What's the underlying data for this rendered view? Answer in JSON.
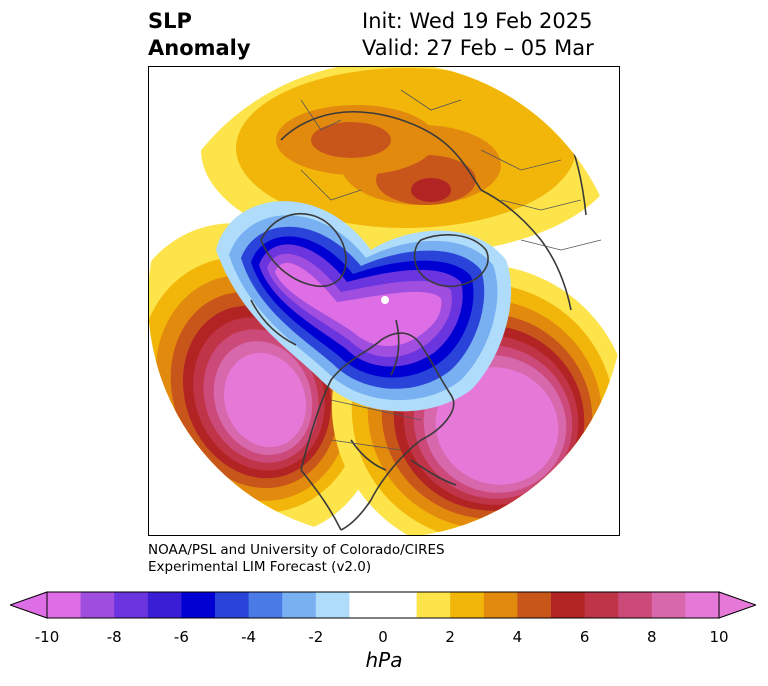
{
  "title": {
    "left_line1": "SLP",
    "left_line2": "Anomaly",
    "init": "Init: Wed 19 Feb 2025",
    "valid": "Valid: 27 Feb – 05 Mar"
  },
  "credit": {
    "line1": "NOAA/PSL and University of Colorado/CIRES",
    "line2": "Experimental LIM Forecast (v2.0)"
  },
  "colorbar": {
    "unit": "hPa",
    "ticks": [
      "-10",
      "-8",
      "-6",
      "-4",
      "-2",
      "0",
      "2",
      "4",
      "6",
      "8",
      "10"
    ],
    "colors": [
      "#dd6ee6",
      "#a04ee0",
      "#6a34de",
      "#3a1ed6",
      "#0000d2",
      "#2a44da",
      "#4a7ae6",
      "#78b0f2",
      "#aedcfa",
      "#ffffff",
      "#ffffff",
      "#fde44a",
      "#f2b60a",
      "#e28a0e",
      "#c8561a",
      "#b22424",
      "#c03448",
      "#cc4a7a",
      "#d868ac",
      "#e678d8"
    ]
  }
}
